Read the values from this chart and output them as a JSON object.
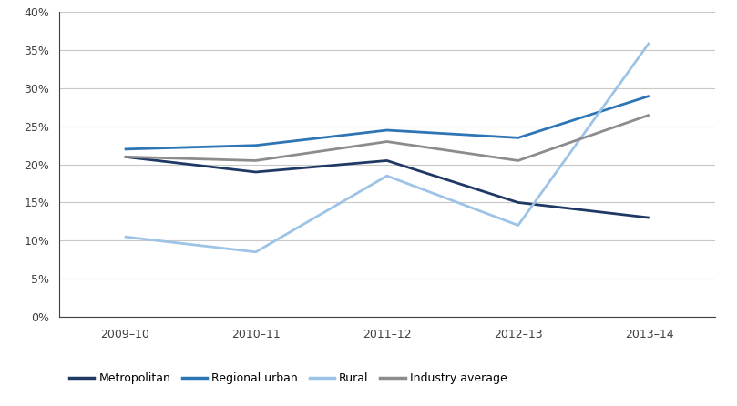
{
  "x_labels": [
    "2009–10",
    "2010–11",
    "2011–12",
    "2012–13",
    "2013–14"
  ],
  "series": {
    "Metropolitan": [
      21.0,
      19.0,
      20.5,
      15.0,
      13.0
    ],
    "Regional urban": [
      22.0,
      22.5,
      24.5,
      23.5,
      29.0
    ],
    "Rural": [
      10.5,
      8.5,
      18.5,
      12.0,
      36.0
    ],
    "Industry average": [
      21.0,
      20.5,
      23.0,
      20.5,
      26.5
    ]
  },
  "colors": {
    "Metropolitan": "#1F3864",
    "Regional urban": "#2E75B6",
    "Rural": "#9DC3E6",
    "Industry average": "#8C8C8C"
  },
  "ylim": [
    0,
    40
  ],
  "yticks": [
    0,
    5,
    10,
    15,
    20,
    25,
    30,
    35,
    40
  ],
  "background_color": "#FFFFFF",
  "grid_color": "#C8C8C8",
  "line_width": 2.0
}
